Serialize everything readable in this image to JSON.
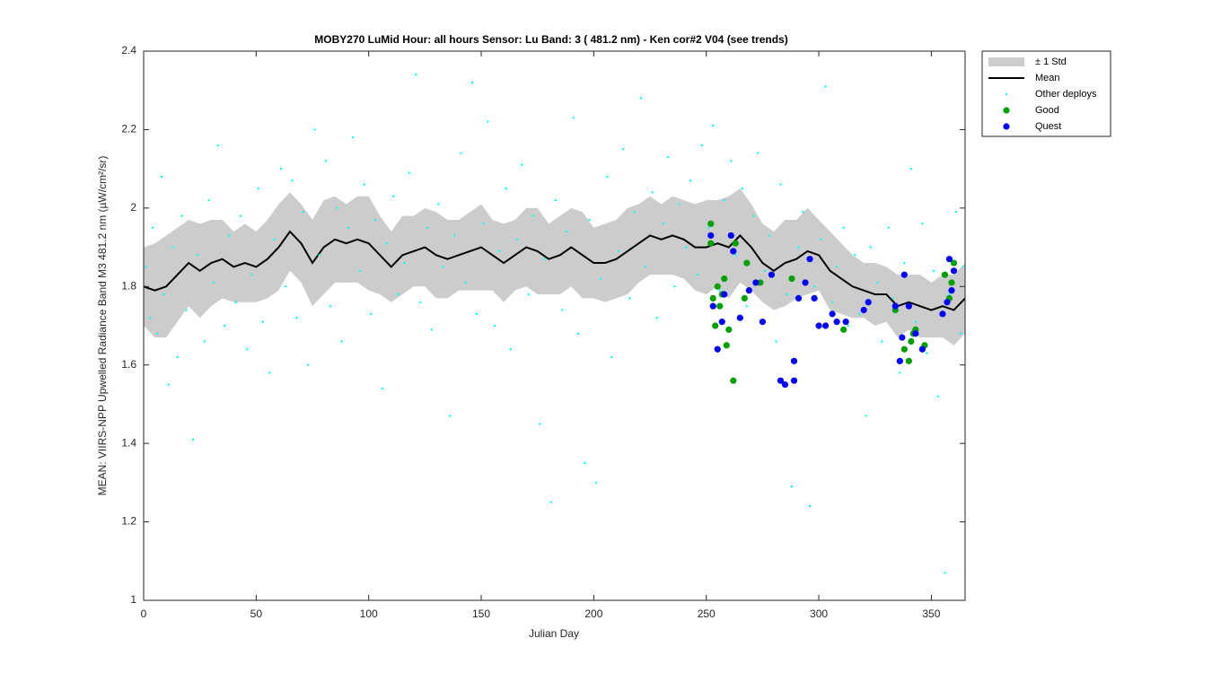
{
  "chart_data": {
    "type": "scatter",
    "title": "MOBY270   LuMid  Hour: all hours  Sensor: Lu Band: 3 ( 481.2 nm)  - Ken cor#2 V04 (see trends)",
    "xlabel": "Julian Day",
    "ylabel": "MEAN: VIIRS-NPP Upwelled Radiance Band M3 481.2 nm (µW/cm²/sr)",
    "xlim": [
      0,
      365
    ],
    "xticks": [
      0,
      50,
      100,
      150,
      200,
      250,
      300,
      350
    ],
    "ylim": [
      1,
      2.4
    ],
    "yticks": [
      1,
      1.2,
      1.4,
      1.6,
      1.8,
      2,
      2.2,
      2.4
    ],
    "legend_position": "outside-upper-right",
    "series": [
      {
        "name": "± 1 Std",
        "kind": "band",
        "color": "#cccccc",
        "x": [
          0,
          5,
          10,
          15,
          20,
          25,
          30,
          35,
          40,
          45,
          50,
          55,
          60,
          65,
          70,
          75,
          80,
          85,
          90,
          95,
          100,
          105,
          110,
          115,
          120,
          125,
          130,
          135,
          140,
          145,
          150,
          155,
          160,
          165,
          170,
          175,
          180,
          185,
          190,
          195,
          200,
          205,
          210,
          215,
          220,
          225,
          230,
          235,
          240,
          245,
          250,
          255,
          260,
          265,
          270,
          275,
          280,
          285,
          290,
          295,
          300,
          305,
          310,
          315,
          320,
          325,
          330,
          335,
          340,
          345,
          350,
          355,
          360,
          365
        ],
        "values": [
          1.8,
          1.79,
          1.8,
          1.83,
          1.86,
          1.84,
          1.86,
          1.87,
          1.85,
          1.86,
          1.85,
          1.87,
          1.9,
          1.94,
          1.91,
          1.86,
          1.9,
          1.92,
          1.91,
          1.92,
          1.91,
          1.88,
          1.85,
          1.88,
          1.89,
          1.9,
          1.88,
          1.87,
          1.88,
          1.89,
          1.9,
          1.88,
          1.86,
          1.88,
          1.9,
          1.89,
          1.87,
          1.88,
          1.9,
          1.88,
          1.86,
          1.86,
          1.87,
          1.89,
          1.91,
          1.93,
          1.92,
          1.93,
          1.92,
          1.9,
          1.9,
          1.91,
          1.9,
          1.93,
          1.9,
          1.86,
          1.84,
          1.86,
          1.87,
          1.89,
          1.88,
          1.84,
          1.82,
          1.8,
          1.79,
          1.78,
          1.78,
          1.75,
          1.76,
          1.75,
          1.74,
          1.75,
          1.74,
          1.77
        ],
        "std": [
          0.1,
          0.12,
          0.13,
          0.12,
          0.11,
          0.12,
          0.11,
          0.1,
          0.09,
          0.1,
          0.09,
          0.1,
          0.11,
          0.1,
          0.1,
          0.11,
          0.12,
          0.11,
          0.1,
          0.11,
          0.12,
          0.1,
          0.09,
          0.1,
          0.09,
          0.1,
          0.11,
          0.1,
          0.09,
          0.1,
          0.11,
          0.09,
          0.1,
          0.09,
          0.1,
          0.11,
          0.09,
          0.1,
          0.1,
          0.11,
          0.09,
          0.1,
          0.1,
          0.11,
          0.1,
          0.1,
          0.09,
          0.1,
          0.1,
          0.11,
          0.12,
          0.11,
          0.13,
          0.12,
          0.11,
          0.1,
          0.1,
          0.11,
          0.1,
          0.11,
          0.09,
          0.1,
          0.09,
          0.08,
          0.07,
          0.08,
          0.07,
          0.08,
          0.07,
          0.08,
          0.07,
          0.08,
          0.09,
          0.09
        ]
      },
      {
        "name": "Mean",
        "kind": "line",
        "color": "#000000",
        "x": [
          0,
          5,
          10,
          15,
          20,
          25,
          30,
          35,
          40,
          45,
          50,
          55,
          60,
          65,
          70,
          75,
          80,
          85,
          90,
          95,
          100,
          105,
          110,
          115,
          120,
          125,
          130,
          135,
          140,
          145,
          150,
          155,
          160,
          165,
          170,
          175,
          180,
          185,
          190,
          195,
          200,
          205,
          210,
          215,
          220,
          225,
          230,
          235,
          240,
          245,
          250,
          255,
          260,
          265,
          270,
          275,
          280,
          285,
          290,
          295,
          300,
          305,
          310,
          315,
          320,
          325,
          330,
          335,
          340,
          345,
          350,
          355,
          360,
          365
        ],
        "values": [
          1.8,
          1.79,
          1.8,
          1.83,
          1.86,
          1.84,
          1.86,
          1.87,
          1.85,
          1.86,
          1.85,
          1.87,
          1.9,
          1.94,
          1.91,
          1.86,
          1.9,
          1.92,
          1.91,
          1.92,
          1.91,
          1.88,
          1.85,
          1.88,
          1.89,
          1.9,
          1.88,
          1.87,
          1.88,
          1.89,
          1.9,
          1.88,
          1.86,
          1.88,
          1.9,
          1.89,
          1.87,
          1.88,
          1.9,
          1.88,
          1.86,
          1.86,
          1.87,
          1.89,
          1.91,
          1.93,
          1.92,
          1.93,
          1.92,
          1.9,
          1.9,
          1.91,
          1.9,
          1.93,
          1.9,
          1.86,
          1.84,
          1.86,
          1.87,
          1.89,
          1.88,
          1.84,
          1.82,
          1.8,
          1.79,
          1.78,
          1.78,
          1.75,
          1.76,
          1.75,
          1.74,
          1.75,
          1.74,
          1.77
        ]
      },
      {
        "name": "Other deploys",
        "kind": "scatter",
        "color": "#00ffff",
        "size": "small",
        "x": [
          1,
          3,
          4,
          6,
          8,
          9,
          11,
          13,
          15,
          17,
          19,
          22,
          24,
          27,
          29,
          31,
          33,
          36,
          38,
          41,
          43,
          46,
          48,
          51,
          53,
          56,
          58,
          61,
          63,
          66,
          68,
          71,
          73,
          76,
          78,
          81,
          83,
          86,
          88,
          91,
          93,
          96,
          98,
          101,
          103,
          106,
          108,
          111,
          113,
          116,
          118,
          121,
          123,
          126,
          128,
          131,
          133,
          136,
          138,
          141,
          143,
          146,
          148,
          151,
          153,
          156,
          158,
          161,
          163,
          166,
          168,
          171,
          173,
          176,
          178,
          181,
          183,
          186,
          188,
          191,
          193,
          196,
          198,
          201,
          203,
          206,
          208,
          211,
          213,
          216,
          218,
          221,
          223,
          226,
          228,
          231,
          233,
          236,
          238,
          241,
          243,
          246,
          248,
          251,
          253,
          256,
          258,
          261,
          263,
          266,
          268,
          271,
          273,
          276,
          278,
          281,
          283,
          286,
          288,
          291,
          293,
          296,
          298,
          301,
          303,
          306,
          308,
          311,
          313,
          316,
          318,
          321,
          323,
          326,
          328,
          331,
          333,
          336,
          338,
          341,
          343,
          346,
          348,
          351,
          353,
          356,
          358,
          361,
          363,
          364
        ],
        "values": [
          1.85,
          1.72,
          1.95,
          1.68,
          2.08,
          1.78,
          1.55,
          1.9,
          1.62,
          1.98,
          1.74,
          1.41,
          1.88,
          1.66,
          2.02,
          1.81,
          2.16,
          1.7,
          1.93,
          1.76,
          1.98,
          1.64,
          1.83,
          2.05,
          1.71,
          1.58,
          1.92,
          2.1,
          1.8,
          2.07,
          1.72,
          1.99,
          1.6,
          2.2,
          1.88,
          2.12,
          1.75,
          2.0,
          1.66,
          1.95,
          2.18,
          1.84,
          2.06,
          1.73,
          1.97,
          1.54,
          1.91,
          2.03,
          1.78,
          1.86,
          2.09,
          2.34,
          1.76,
          1.95,
          1.69,
          2.01,
          1.85,
          1.47,
          1.93,
          2.14,
          1.81,
          2.32,
          1.73,
          1.96,
          2.22,
          1.7,
          1.89,
          2.05,
          1.64,
          1.92,
          2.11,
          1.78,
          1.98,
          1.45,
          1.87,
          1.25,
          2.02,
          1.74,
          1.94,
          2.23,
          1.68,
          1.35,
          1.97,
          1.3,
          1.82,
          2.08,
          1.62,
          1.89,
          2.15,
          1.77,
          1.99,
          2.28,
          1.85,
          2.04,
          1.72,
          1.96,
          2.13,
          1.8,
          2.01,
          1.9,
          2.07,
          1.83,
          2.16,
          1.95,
          2.21,
          1.79,
          2.02,
          2.12,
          1.88,
          2.05,
          1.75,
          1.98,
          2.14,
          1.84,
          1.93,
          1.66,
          2.06,
          1.78,
          1.29,
          1.9,
          1.99,
          1.24,
          1.8,
          1.92,
          2.31,
          1.76,
          1.85,
          1.95,
          1.7,
          1.88,
          1.73,
          1.47,
          1.9,
          1.81,
          1.66,
          1.95,
          1.77,
          1.58,
          1.86,
          2.1,
          1.71,
          1.96,
          1.63,
          1.84,
          1.52,
          1.07,
          1.78,
          1.99,
          1.68,
          1.85
        ]
      },
      {
        "name": "Good",
        "kind": "scatter",
        "color": "#00a000",
        "size": "large",
        "x": [
          252,
          252,
          253,
          254,
          255,
          256,
          257,
          258,
          259,
          260,
          262,
          263,
          267,
          268,
          274,
          288,
          311,
          334,
          338,
          340,
          341,
          342,
          343,
          347,
          356,
          358,
          359,
          360
        ],
        "values": [
          1.96,
          1.91,
          1.77,
          1.7,
          1.8,
          1.75,
          1.78,
          1.82,
          1.65,
          1.69,
          1.56,
          1.91,
          1.77,
          1.86,
          1.81,
          1.82,
          1.69,
          1.74,
          1.64,
          1.61,
          1.66,
          1.68,
          1.69,
          1.65,
          1.83,
          1.77,
          1.81,
          1.86
        ]
      },
      {
        "name": "Quest",
        "kind": "scatter",
        "color": "#0000ff",
        "size": "large",
        "x": [
          252,
          253,
          255,
          257,
          258,
          261,
          262,
          265,
          269,
          272,
          275,
          279,
          283,
          285,
          289,
          289,
          291,
          294,
          296,
          298,
          300,
          303,
          306,
          308,
          312,
          320,
          322,
          334,
          336,
          337,
          338,
          340,
          343,
          346,
          355,
          357,
          358,
          359,
          360
        ],
        "values": [
          1.93,
          1.75,
          1.64,
          1.71,
          1.78,
          1.93,
          1.89,
          1.72,
          1.79,
          1.81,
          1.71,
          1.83,
          1.56,
          1.55,
          1.61,
          1.56,
          1.77,
          1.81,
          1.87,
          1.77,
          1.7,
          1.7,
          1.73,
          1.71,
          1.71,
          1.74,
          1.76,
          1.75,
          1.61,
          1.67,
          1.83,
          1.75,
          1.68,
          1.64,
          1.73,
          1.76,
          1.87,
          1.79,
          1.84
        ]
      }
    ]
  }
}
